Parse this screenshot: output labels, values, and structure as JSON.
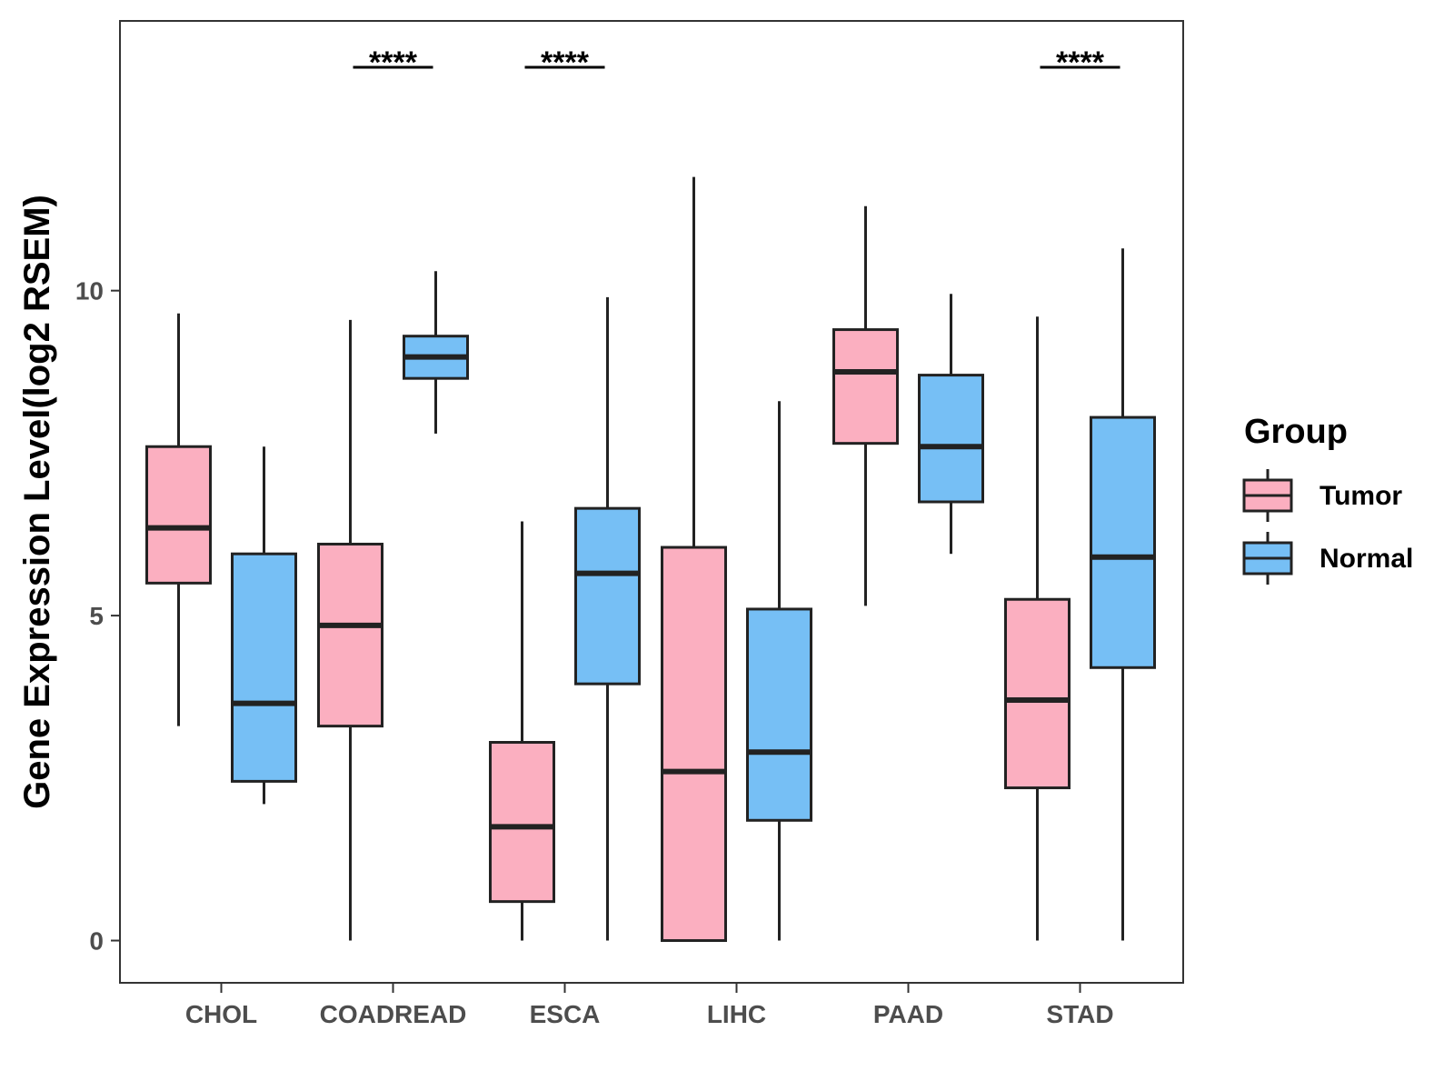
{
  "chart_data": {
    "type": "boxplot",
    "ylabel": "Gene Expression Level(log2 RSEM)",
    "xlabel": "",
    "ylim": [
      -0.65,
      14.15
    ],
    "yticks": [
      0,
      5,
      10
    ],
    "categories": [
      "CHOL",
      "COADREAD",
      "ESCA",
      "LIHC",
      "PAAD",
      "STAD"
    ],
    "legend": {
      "title": "Group",
      "position": "right",
      "entries": [
        {
          "name": "Tumor",
          "color": "#fbafc0"
        },
        {
          "name": "Normal",
          "color": "#76bff5"
        }
      ]
    },
    "series": [
      {
        "name": "Tumor",
        "color": "#fbafc0",
        "boxes": [
          {
            "min": 3.3,
            "q1": 5.5,
            "median": 6.35,
            "q3": 7.6,
            "max": 9.65
          },
          {
            "min": 0.0,
            "q1": 3.3,
            "median": 4.85,
            "q3": 6.1,
            "max": 9.55
          },
          {
            "min": 0.0,
            "q1": 0.6,
            "median": 1.75,
            "q3": 3.05,
            "max": 6.45
          },
          {
            "min": 0.0,
            "q1": 0.0,
            "median": 2.6,
            "q3": 6.05,
            "max": 11.75
          },
          {
            "min": 5.15,
            "q1": 7.65,
            "median": 8.75,
            "q3": 9.4,
            "max": 11.3
          },
          {
            "min": 0.0,
            "q1": 2.35,
            "median": 3.7,
            "q3": 5.25,
            "max": 9.6
          }
        ]
      },
      {
        "name": "Normal",
        "color": "#76bff5",
        "boxes": [
          {
            "min": 2.1,
            "q1": 2.45,
            "median": 3.65,
            "q3": 5.95,
            "max": 7.6
          },
          {
            "min": 7.8,
            "q1": 8.65,
            "median": 8.98,
            "q3": 9.3,
            "max": 10.3
          },
          {
            "min": 0.0,
            "q1": 3.95,
            "median": 5.65,
            "q3": 6.65,
            "max": 9.9
          },
          {
            "min": 0.0,
            "q1": 1.85,
            "median": 2.9,
            "q3": 5.1,
            "max": 8.3
          },
          {
            "min": 5.95,
            "q1": 6.75,
            "median": 7.6,
            "q3": 8.7,
            "max": 9.95
          },
          {
            "min": 0.0,
            "q1": 4.2,
            "median": 5.9,
            "q3": 8.05,
            "max": 10.65
          }
        ]
      }
    ],
    "significance": [
      {
        "category": "COADREAD",
        "label": "****"
      },
      {
        "category": "ESCA",
        "label": "****"
      },
      {
        "category": "STAD",
        "label": "****"
      }
    ]
  }
}
